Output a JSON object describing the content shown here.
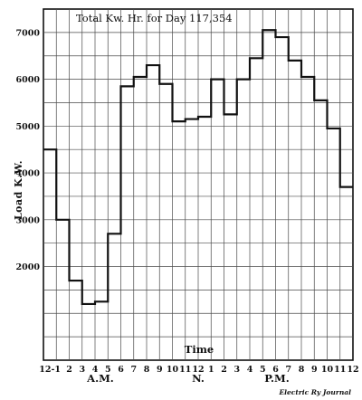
{
  "chart_data": {
    "type": "line",
    "step": true,
    "annotation": "Total Kw. Hr. for Day 117,354",
    "ylabel": "Load K.W.",
    "xlabel": "Time",
    "ylim": [
      0,
      7500
    ],
    "yticks": [
      2000,
      3000,
      4000,
      5000,
      6000,
      7000
    ],
    "xlim": [
      0,
      24
    ],
    "x_tick_labels": [
      "12-1",
      "2",
      "3",
      "4",
      "5",
      "6",
      "7",
      "8",
      "9",
      "10",
      "11",
      "12",
      "1",
      "2",
      "3",
      "4",
      "5",
      "6",
      "7",
      "8",
      "9",
      "10",
      "11",
      "12"
    ],
    "period_labels": [
      "A.M.",
      "N.",
      "P.M."
    ],
    "grid": true,
    "series": [
      {
        "hour_start": [
          0,
          1,
          2,
          3,
          4,
          5,
          6,
          7,
          8,
          9,
          10,
          11,
          12,
          13,
          14,
          15,
          16,
          17,
          18,
          19,
          20,
          21,
          22,
          23
        ],
        "load_kw": [
          4500,
          3000,
          1700,
          1200,
          1250,
          2700,
          5850,
          6050,
          6300,
          5900,
          5100,
          5150,
          5200,
          6000,
          5250,
          6000,
          6450,
          7050,
          6900,
          6400,
          6050,
          5550,
          4950,
          3700
        ]
      }
    ]
  },
  "credit": "Electric Ry Journal",
  "colors": {
    "line": "#111111",
    "grid": "#4a4a4a",
    "background": "#ffffff"
  }
}
